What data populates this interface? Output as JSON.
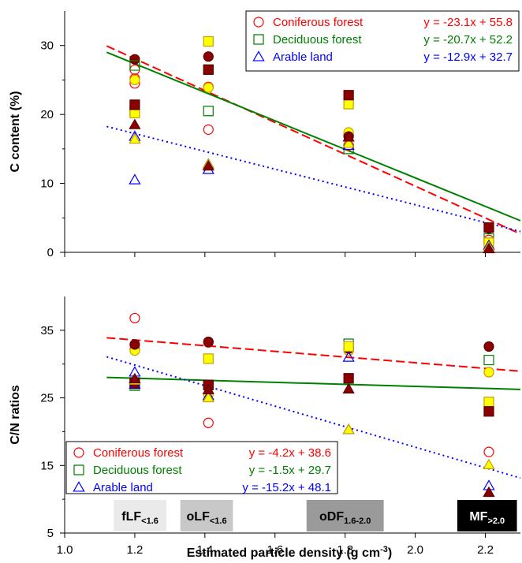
{
  "chart_data": [
    {
      "type": "scatter",
      "panel": "top",
      "ylabel": "C content (%)",
      "xlim": [
        1.0,
        2.3
      ],
      "ylim": [
        0,
        35
      ],
      "yticks": [
        "0",
        "10",
        "20",
        "30"
      ],
      "legend_position": "top-right",
      "series": [
        {
          "name": "Coniferous forest",
          "equation": "y = -23.1x + 55.8",
          "color": "#ff0000",
          "line_style": "dashed",
          "fit": {
            "slope": -23.1,
            "intercept": 55.8
          },
          "open_points": [
            {
              "x": 1.2,
              "y": 24.5
            },
            {
              "x": 1.2,
              "y": 25.2
            },
            {
              "x": 1.2,
              "y": 26.5
            },
            {
              "x": 1.41,
              "y": 17.8
            },
            {
              "x": 1.41,
              "y": 24.0
            },
            {
              "x": 1.81,
              "y": 15.5
            },
            {
              "x": 1.81,
              "y": 17.0
            },
            {
              "x": 2.21,
              "y": 1.0
            },
            {
              "x": 2.21,
              "y": 1.8
            }
          ],
          "filled_points": [
            {
              "x": 1.2,
              "y": 28.0
            },
            {
              "x": 1.41,
              "y": 28.4
            },
            {
              "x": 1.81,
              "y": 16.8
            },
            {
              "x": 2.21,
              "y": 3.5
            }
          ],
          "yellow_points": [
            {
              "x": 1.2,
              "y": 25.0
            },
            {
              "x": 1.41,
              "y": 23.9
            },
            {
              "x": 1.81,
              "y": 17.4
            },
            {
              "x": 2.21,
              "y": 1.3
            }
          ]
        },
        {
          "name": "Deciduous forest",
          "equation": "y = -20.7x + 52.2",
          "color": "#008000",
          "line_style": "solid",
          "fit": {
            "slope": -20.7,
            "intercept": 52.2
          },
          "open_points": [
            {
              "x": 1.2,
              "y": 27.1
            },
            {
              "x": 1.2,
              "y": 20.5
            },
            {
              "x": 1.41,
              "y": 20.5
            },
            {
              "x": 1.41,
              "y": 26.5
            },
            {
              "x": 1.81,
              "y": 15.0
            },
            {
              "x": 2.21,
              "y": 2.0
            }
          ],
          "filled_points": [
            {
              "x": 1.2,
              "y": 21.4
            },
            {
              "x": 1.41,
              "y": 26.5
            },
            {
              "x": 1.81,
              "y": 22.8
            },
            {
              "x": 2.21,
              "y": 3.6
            }
          ],
          "yellow_points": [
            {
              "x": 1.2,
              "y": 20.2
            },
            {
              "x": 1.41,
              "y": 30.6
            },
            {
              "x": 1.81,
              "y": 21.5
            },
            {
              "x": 2.21,
              "y": 1.4
            }
          ]
        },
        {
          "name": "Arable land",
          "equation": "y = -12.9x + 32.7",
          "color": "#0000ff",
          "line_style": "dotted",
          "fit": {
            "slope": -12.9,
            "intercept": 32.7
          },
          "open_points": [
            {
              "x": 1.2,
              "y": 10.5
            },
            {
              "x": 1.2,
              "y": 16.8
            },
            {
              "x": 1.41,
              "y": 12.0
            },
            {
              "x": 1.41,
              "y": 12.8
            },
            {
              "x": 1.81,
              "y": 15.5
            },
            {
              "x": 2.21,
              "y": 1.0
            }
          ],
          "filled_points": [
            {
              "x": 1.2,
              "y": 18.5
            },
            {
              "x": 1.41,
              "y": 12.5
            },
            {
              "x": 1.81,
              "y": 16.7
            },
            {
              "x": 2.21,
              "y": 0.5
            }
          ],
          "yellow_points": [
            {
              "x": 1.2,
              "y": 16.4
            },
            {
              "x": 1.41,
              "y": 12.8
            },
            {
              "x": 1.81,
              "y": 15.8
            },
            {
              "x": 2.21,
              "y": 0.8
            }
          ]
        }
      ]
    },
    {
      "type": "scatter",
      "panel": "bottom",
      "xlabel": "Estimated particle density (g cm",
      "xlabel_sup": "-3",
      "xlabel_end": ")",
      "ylabel": "C/N ratios",
      "xlim": [
        1.0,
        2.3
      ],
      "ylim": [
        5,
        40
      ],
      "xticks": [
        "1.0",
        "1.2",
        "1.4",
        "1.6",
        "1.8",
        "2.0",
        "2.2"
      ],
      "yticks": [
        "5",
        "15",
        "25",
        "35"
      ],
      "legend_position": "bottom-left",
      "series": [
        {
          "name": "Coniferous forest",
          "equation": "y = -4.2x + 38.6",
          "color": "#ff0000",
          "line_style": "dashed",
          "fit": {
            "slope": -4.2,
            "intercept": 38.6
          },
          "open_points": [
            {
              "x": 1.2,
              "y": 36.8
            },
            {
              "x": 1.2,
              "y": 32.2
            },
            {
              "x": 1.41,
              "y": 21.3
            },
            {
              "x": 1.41,
              "y": 33.2
            },
            {
              "x": 1.81,
              "y": 32.0
            },
            {
              "x": 2.21,
              "y": 17.0
            },
            {
              "x": 2.21,
              "y": 28.8
            }
          ],
          "filled_points": [
            {
              "x": 1.2,
              "y": 32.9
            },
            {
              "x": 1.41,
              "y": 33.3
            },
            {
              "x": 1.81,
              "y": 32.3
            },
            {
              "x": 2.21,
              "y": 32.6
            }
          ],
          "yellow_points": [
            {
              "x": 1.2,
              "y": 32.0
            },
            {
              "x": 1.41,
              "y": 25.5
            },
            {
              "x": 1.81,
              "y": 32.0
            },
            {
              "x": 2.21,
              "y": 28.8
            }
          ]
        },
        {
          "name": "Deciduous forest",
          "equation": "y = -1.5x + 29.7",
          "color": "#008000",
          "line_style": "solid",
          "fit": {
            "slope": -1.5,
            "intercept": 29.7
          },
          "open_points": [
            {
              "x": 1.2,
              "y": 27.3
            },
            {
              "x": 1.2,
              "y": 26.8
            },
            {
              "x": 1.41,
              "y": 26.9
            },
            {
              "x": 1.81,
              "y": 33.0
            },
            {
              "x": 2.21,
              "y": 30.6
            }
          ],
          "filled_points": [
            {
              "x": 1.2,
              "y": 27.2
            },
            {
              "x": 1.41,
              "y": 26.9
            },
            {
              "x": 1.81,
              "y": 27.9
            },
            {
              "x": 2.21,
              "y": 23.0
            }
          ],
          "yellow_points": [
            {
              "x": 1.2,
              "y": 27.0
            },
            {
              "x": 1.41,
              "y": 30.8
            },
            {
              "x": 1.81,
              "y": 32.6
            },
            {
              "x": 2.21,
              "y": 24.4
            }
          ]
        },
        {
          "name": "Arable land",
          "equation": "y = -15.2x + 48.1",
          "color": "#0000ff",
          "line_style": "dotted",
          "fit": {
            "slope": -15.2,
            "intercept": 48.1
          },
          "open_points": [
            {
              "x": 1.2,
              "y": 27.0
            },
            {
              "x": 1.2,
              "y": 28.8
            },
            {
              "x": 1.41,
              "y": 25.3
            },
            {
              "x": 1.81,
              "y": 31.0
            },
            {
              "x": 1.81,
              "y": 20.3
            },
            {
              "x": 2.21,
              "y": 12.0
            }
          ],
          "filled_points": [
            {
              "x": 1.2,
              "y": 27.8
            },
            {
              "x": 1.41,
              "y": 26.2
            },
            {
              "x": 1.81,
              "y": 26.3
            },
            {
              "x": 2.21,
              "y": 11.0
            }
          ],
          "yellow_points": [
            {
              "x": 1.2,
              "y": 27.6
            },
            {
              "x": 1.41,
              "y": 25.0
            },
            {
              "x": 1.81,
              "y": 20.3
            },
            {
              "x": 2.21,
              "y": 15.1
            }
          ]
        }
      ],
      "fractions": [
        {
          "main": "fLF",
          "sub": "<1.6",
          "from": 1.14,
          "to": 1.29,
          "fill": "#eaeaea",
          "text": "#000000"
        },
        {
          "main": "oLF",
          "sub": "<1.6",
          "from": 1.33,
          "to": 1.48,
          "fill": "#c8c8c8",
          "text": "#000000"
        },
        {
          "main": "oDF",
          "sub": "1.6-2.0",
          "from": 1.69,
          "to": 1.91,
          "fill": "#9a9a9a",
          "text": "#000000"
        },
        {
          "main": "MF",
          "sub": ">2.0",
          "from": 2.12,
          "to": 2.29,
          "fill": "#000000",
          "text": "#ffffff"
        }
      ]
    }
  ]
}
